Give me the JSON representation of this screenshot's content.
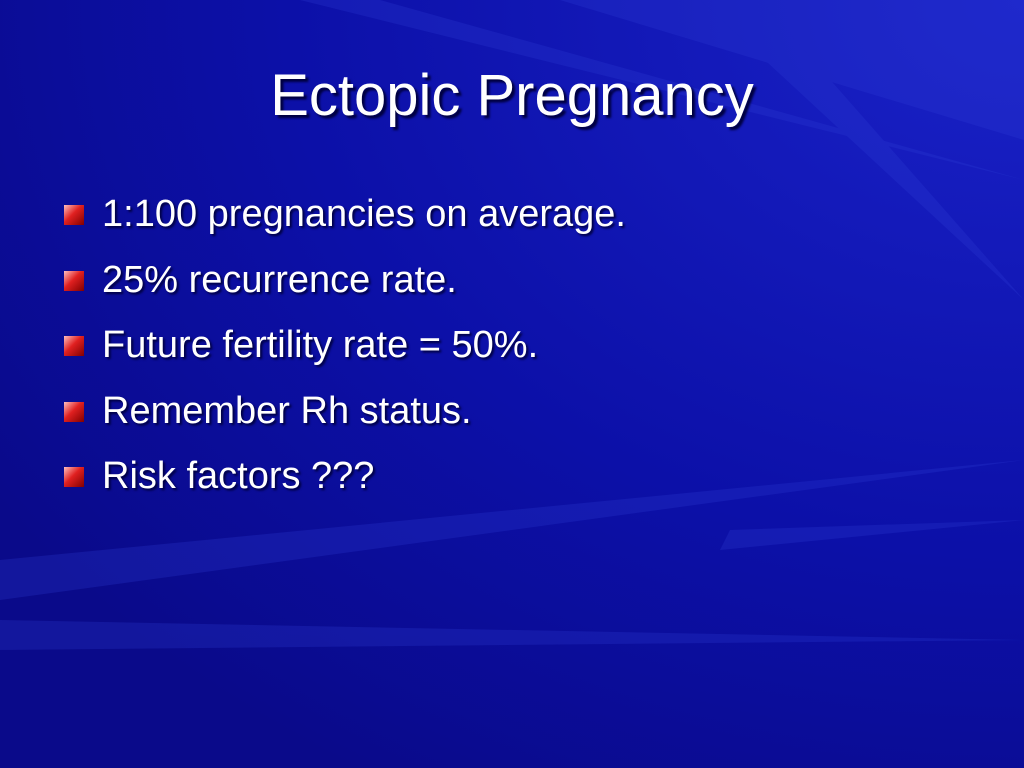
{
  "slide": {
    "title": "Ectopic Pregnancy",
    "bullets": [
      "1:100 pregnancies on average.",
      "25% recurrence rate.",
      "Future fertility rate = 50%.",
      "Remember Rh status.",
      "Risk factors ???"
    ]
  }
}
